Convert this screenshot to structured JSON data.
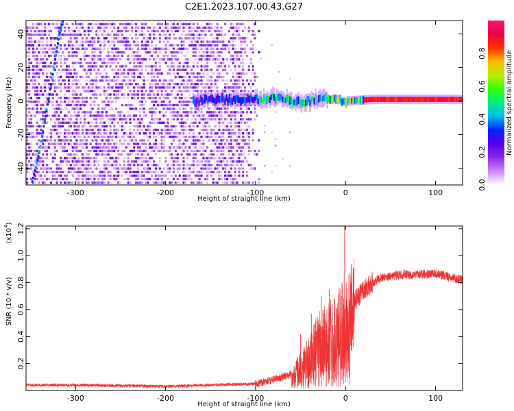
{
  "figure_title": "C2E1.2023.107.00.43.G27",
  "chart_data": [
    {
      "type": "heatmap",
      "xlabel": "Height of straight line (km)",
      "ylabel": "Frequency (Hz)",
      "xlim": [
        -355,
        130
      ],
      "ylim": [
        -50,
        48
      ],
      "xticks": [
        "-300",
        "-200",
        "-100",
        "0",
        "100"
      ],
      "xtick_values": [
        -300,
        -200,
        -100,
        0,
        100
      ],
      "yticks": [
        "40",
        "20",
        "0",
        "-20",
        "-40"
      ],
      "ytick_values": [
        40,
        20,
        0,
        -20,
        -40
      ],
      "colorbar": {
        "label": "Normalized spectral amplitude",
        "range": [
          0,
          1
        ],
        "ticks": [
          "0.0",
          "0.2",
          "0.4",
          "0.6",
          "0.8"
        ],
        "tick_values": [
          0.0,
          0.2,
          0.4,
          0.6,
          0.8
        ],
        "colormap": [
          "#ffffff",
          "#cc88ff",
          "#8a2be2",
          "#5500ee",
          "#0022ff",
          "#00bbee",
          "#00ee88",
          "#33ff00",
          "#bbee00",
          "#ffbb00",
          "#ff3300",
          "#ee0044",
          "#ff1177"
        ]
      },
      "features": {
        "noise_region_x": [
          -355,
          -95
        ],
        "sparse_region_x": [
          -95,
          -62
        ],
        "carrier_line": [
          [
            -170,
            0
          ],
          [
            -130,
            1
          ],
          [
            -100,
            1
          ],
          [
            -80,
            2
          ],
          [
            -55,
            -1
          ],
          [
            -30,
            1
          ],
          [
            -10,
            1
          ],
          [
            0,
            0
          ],
          [
            30,
            1
          ],
          [
            130,
            1
          ]
        ],
        "diagonal_trace": [
          [
            -348,
            -48
          ],
          [
            -340,
            -30
          ],
          [
            -332,
            -5
          ],
          [
            -324,
            20
          ],
          [
            -318,
            40
          ],
          [
            -314,
            48
          ]
        ]
      }
    },
    {
      "type": "line",
      "xlabel": "Height of straight line (km)",
      "ylabel": "SNR (10 * v/v)",
      "y_multiplier": "(x10",
      "y_multiplier_exp": "4",
      "y_multiplier_close": ")",
      "xlim": [
        -355,
        130
      ],
      "ylim": [
        0,
        1.22
      ],
      "xticks": [
        "-300",
        "-200",
        "-100",
        "0",
        "100"
      ],
      "xtick_values": [
        -300,
        -200,
        -100,
        0,
        100
      ],
      "yticks": [
        "0.2",
        "0.4",
        "0.6",
        "0.8",
        "1.0",
        "1.2"
      ],
      "ytick_values": [
        0.2,
        0.4,
        0.6,
        0.8,
        1.0,
        1.2
      ],
      "color": "#ee3333",
      "envelope": {
        "x": [
          -355,
          -300,
          -200,
          -100,
          -80,
          -60,
          -50,
          -40,
          -30,
          -20,
          -10,
          -5,
          0,
          5,
          10,
          20,
          30,
          40,
          60,
          80,
          100,
          115,
          130
        ],
        "y": [
          0.04,
          0.04,
          0.03,
          0.05,
          0.08,
          0.12,
          0.18,
          0.28,
          0.38,
          0.42,
          0.48,
          0.5,
          0.55,
          0.6,
          0.66,
          0.74,
          0.8,
          0.84,
          0.86,
          0.86,
          0.87,
          0.84,
          0.82
        ]
      },
      "spikes": [
        [
          -50,
          0.42
        ],
        [
          -38,
          0.57
        ],
        [
          -27,
          0.7
        ],
        [
          -18,
          0.75
        ],
        [
          -12,
          0.68
        ],
        [
          -4,
          0.8
        ],
        [
          -1,
          1.22
        ]
      ]
    }
  ]
}
